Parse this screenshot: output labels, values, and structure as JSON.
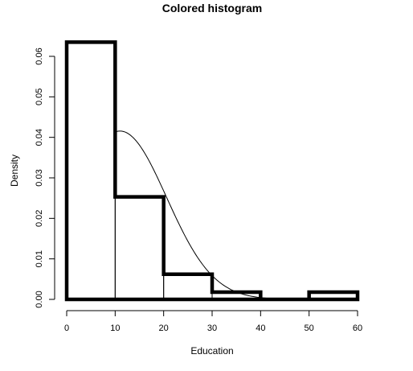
{
  "chart_data": {
    "type": "bar",
    "title": "Colored histogram",
    "xlabel": "Education",
    "ylabel": "Density",
    "xlim": [
      0,
      60
    ],
    "ylim": [
      0,
      0.06
    ],
    "x_ticks": [
      "0",
      "10",
      "20",
      "30",
      "40",
      "50",
      "60"
    ],
    "y_ticks": [
      "0.00",
      "0.01",
      "0.02",
      "0.03",
      "0.04",
      "0.05",
      "0.06"
    ],
    "bins": [
      {
        "from": 0,
        "to": 10,
        "density": 0.0635
      },
      {
        "from": 10,
        "to": 20,
        "density": 0.0253
      },
      {
        "from": 20,
        "to": 30,
        "density": 0.0062
      },
      {
        "from": 30,
        "to": 40,
        "density": 0.0018
      },
      {
        "from": 40,
        "to": 50,
        "density": 0.0
      },
      {
        "from": 50,
        "to": 60,
        "density": 0.0018
      }
    ],
    "curve": {
      "kind": "normal-density",
      "mean": 11,
      "sd": 9.6,
      "range": [
        10,
        45
      ]
    },
    "grid": false,
    "legend": "none",
    "colors": {
      "bar_outline": "#000000",
      "curve": "#000000",
      "background": "#ffffff"
    }
  }
}
